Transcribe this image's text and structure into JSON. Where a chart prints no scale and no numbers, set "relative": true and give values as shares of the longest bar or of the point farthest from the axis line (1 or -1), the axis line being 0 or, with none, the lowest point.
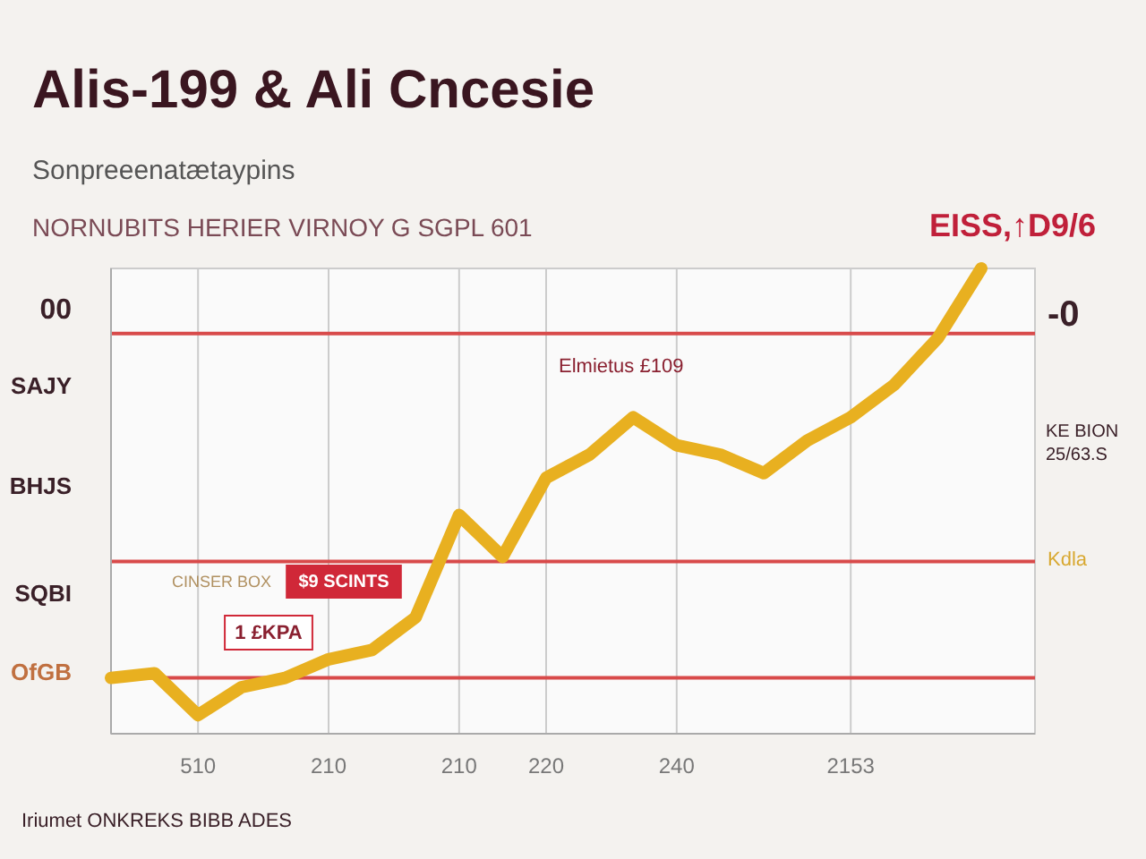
{
  "chart_data": {
    "type": "line",
    "title": "Alis-199 & Ali Cncesie",
    "subtitle": "Sonpreeenatætaypins",
    "relative": true,
    "categories": [
      null,
      null,
      "510",
      null,
      null,
      "210",
      null,
      null,
      "210",
      null,
      "220",
      null,
      null,
      "240",
      null,
      null,
      null,
      "2153",
      null,
      null,
      null
    ],
    "series": [
      {
        "color": "#e8b020",
        "values": [
          0.12,
          0.13,
          0.04,
          0.1,
          0.12,
          0.16,
          0.18,
          0.25,
          0.47,
          0.38,
          0.55,
          0.6,
          0.68,
          0.62,
          0.6,
          0.56,
          0.63,
          0.68,
          0.75,
          0.85,
          1
        ]
      }
    ],
    "ref_lines": [
      {
        "axis": "y",
        "value": 0.86,
        "color": "#d84a4a"
      },
      {
        "axis": "y",
        "value": 0.37,
        "color": "#d84a4a"
      },
      {
        "axis": "y",
        "value": 0.12,
        "color": "#d84a4a"
      }
    ],
    "grid": "x",
    "marker": "none",
    "line_style": "solid",
    "annotations": [
      "NORNUBITS HERIER VIRNOY G SGPL 601",
      "EISS,↑D9/6",
      "00",
      "SAJY",
      "BHJS",
      "SQBI",
      "OfGB",
      "-0",
      "KE BION",
      "25/63.S",
      "Kdla",
      "Elmietus £109",
      "CINSER BOX",
      "$9 SCINTS",
      "1 £KPA",
      "Iriumet ONKREKS BIBB ADES"
    ]
  }
}
